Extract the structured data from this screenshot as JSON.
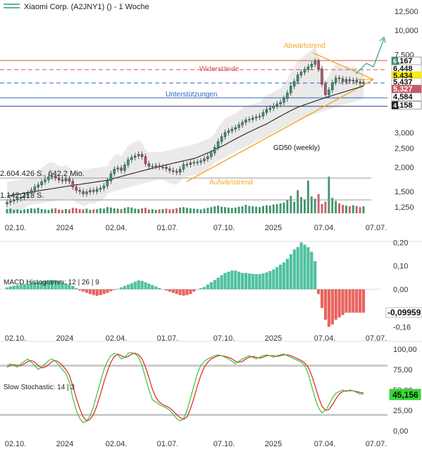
{
  "header": {
    "title": "Xiaomi Corp. (A2JNY1) () - 1 Woche"
  },
  "colors": {
    "up": "#2e9e6e",
    "down": "#c0505a",
    "gd50": "#222222",
    "trend": "#f5a623",
    "resistance": "#d9534f",
    "support": "#2a66b8",
    "arrow": "#3aa58f",
    "band": "#e6e6e6",
    "macd_pos": "#4fc1a1",
    "macd_neg": "#e8645f",
    "stoch_k": "#39c639",
    "stoch_d": "#e02020",
    "stoch_bound": "#cccccc",
    "price_badge_yellow": "#ffee00",
    "stoch_badge_green": "#33dd33"
  },
  "price_panel": {
    "y_ticks": [
      "12,500",
      "10,000",
      "7,500",
      "5,000",
      "3,000",
      "2,500",
      "2,000",
      "1,500",
      "1,250"
    ],
    "badges": [
      {
        "value": "7,167",
        "style": "white-dark"
      },
      {
        "value": "6,448",
        "style": "white"
      },
      {
        "value": "5,434",
        "style": "yellow"
      },
      {
        "value": "5,437",
        "style": "white"
      },
      {
        "value": "5,327",
        "style": "red"
      },
      {
        "value": "4,584",
        "style": "white"
      },
      {
        "value": "4,158",
        "style": "white-dark"
      }
    ],
    "badge_letters": {
      "b6": "6",
      "b4": "4"
    },
    "labels": {
      "abwaertstrend": "Abwärtstrend",
      "aufwaertstrend": "Aufwärtstrend",
      "widerstaende": "Widerstände",
      "unterstuetzungen": "Unterstützungen",
      "gd50": "GD50 (weekly)",
      "vol_left_1": "2.604.426 S., 642,2 Mio.",
      "vol_left_2": "1.142.213 S."
    },
    "x_labels": [
      "02.10.",
      "2024",
      "02.04.",
      "01.07.",
      "07.10.",
      "2025",
      "07.04.",
      "07.07."
    ]
  },
  "macd_panel": {
    "title": "MACD Histogramm: 12 | 26 | 9",
    "y_ticks": [
      "0,20",
      "0,10",
      "0,00",
      "-0,16"
    ],
    "badge": "-0,09959",
    "x_labels": [
      "02.10.",
      "2024",
      "02.04.",
      "01.07.",
      "07.10.",
      "2025",
      "07.04.",
      "07.07."
    ]
  },
  "stoch_panel": {
    "title": "Slow Stochastic: 14 | 3",
    "y_ticks": [
      "100,00",
      "75,00",
      "50,00",
      "25,00",
      "0,00"
    ],
    "badge": "45,156",
    "x_labels": [
      "02.10.",
      "2024",
      "02.04.",
      "01.07.",
      "07.10.",
      "2025",
      "07.04.",
      "07.07."
    ]
  },
  "chart_data": [
    {
      "type": "candlestick",
      "title": "Xiaomi Corp. (A2JNY1) () - 1 Woche",
      "scale": "log",
      "ylim": [
        1.1,
        13.5
      ],
      "x_axis_labels": [
        "02.10.",
        "2024",
        "02.04.",
        "01.07.",
        "07.10.",
        "2025",
        "07.04.",
        "07.07."
      ],
      "y_tick_labels": [
        "12,500",
        "10,000",
        "7,500",
        "5,000",
        "3,000",
        "2,500",
        "2,000",
        "1,500",
        "1,250"
      ],
      "close": [
        1.32,
        1.34,
        1.36,
        1.38,
        1.4,
        1.43,
        1.47,
        1.52,
        1.58,
        1.62,
        1.68,
        1.72,
        1.78,
        1.8,
        1.76,
        1.72,
        1.7,
        1.74,
        1.69,
        1.58,
        1.52,
        1.5,
        1.46,
        1.49,
        1.52,
        1.5,
        1.54,
        1.56,
        1.6,
        1.7,
        1.85,
        1.95,
        1.98,
        1.92,
        2.05,
        2.18,
        2.24,
        2.28,
        2.32,
        2.26,
        2.08,
        2.02,
        2.02,
        2.03,
        2.0,
        2.0,
        1.96,
        1.92,
        1.9,
        1.88,
        1.95,
        2.06,
        2.06,
        2.1,
        2.11,
        2.12,
        2.15,
        2.2,
        2.26,
        2.36,
        2.52,
        2.7,
        2.86,
        3.0,
        3.06,
        3.12,
        3.18,
        3.28,
        3.38,
        3.48,
        3.5,
        3.56,
        3.6,
        3.64,
        3.8,
        3.94,
        4.0,
        4.1,
        4.2,
        4.28,
        4.48,
        4.78,
        5.18,
        5.48,
        5.9,
        6.1,
        6.3,
        6.5,
        6.7,
        6.95,
        6.35,
        5.3,
        4.68,
        4.95,
        5.4,
        5.7,
        5.65,
        5.45,
        5.6,
        5.5,
        5.55,
        5.45,
        5.35,
        5.43
      ],
      "series": [
        {
          "name": "GD50 (weekly)",
          "values": [
            1.42,
            1.43,
            1.44,
            1.45,
            1.46,
            1.47,
            1.48,
            1.49,
            1.5,
            1.51,
            1.52,
            1.53,
            1.54,
            1.55,
            1.56,
            1.57,
            1.58,
            1.59,
            1.6,
            1.61,
            1.62,
            1.63,
            1.64,
            1.65,
            1.66,
            1.67,
            1.68,
            1.69,
            1.7,
            1.71,
            1.73,
            1.75,
            1.77,
            1.79,
            1.81,
            1.83,
            1.85,
            1.87,
            1.89,
            1.91,
            1.93,
            1.95,
            1.97,
            1.99,
            2.01,
            2.03,
            2.05,
            2.07,
            2.09,
            2.11,
            2.13,
            2.15,
            2.17,
            2.19,
            2.21,
            2.24,
            2.28,
            2.32,
            2.36,
            2.4,
            2.45,
            2.5,
            2.55,
            2.6,
            2.66,
            2.72,
            2.78,
            2.84,
            2.9,
            2.96,
            3.02,
            3.08,
            3.14,
            3.2,
            3.26,
            3.32,
            3.4,
            3.48,
            3.56,
            3.64,
            3.72,
            3.8,
            3.88,
            3.96,
            4.04,
            4.1,
            4.16,
            4.22,
            4.28,
            4.34,
            4.4,
            4.46,
            4.52,
            4.58,
            4.64,
            4.7,
            4.76,
            4.82,
            4.88,
            4.94,
            5.0,
            5.06,
            5.12,
            5.18
          ]
        },
        {
          "name": "Widerstände",
          "values": [
            7.167,
            6.448
          ]
        },
        {
          "name": "Unterstützungen",
          "values": [
            4.584,
            4.158
          ]
        }
      ],
      "annotations": [
        "Abwärtstrend",
        "Aufwärtstrend",
        "Widerstände",
        "Unterstützungen",
        "GD50 (weekly)",
        "2.604.426 S., 642,2 Mio.",
        "1.142.213 S."
      ],
      "price_badges": [
        "7,167",
        "6,448",
        "5,434",
        "5,437",
        "5,327",
        "4,584",
        "4,158"
      ],
      "volume": [
        1.1,
        1.2,
        0.9,
        1.0,
        0.8,
        1.0,
        1.1,
        1.3,
        1.2,
        1.4,
        1.1,
        1.0,
        0.9,
        1.2,
        1.3,
        1.0,
        0.9,
        1.1,
        1.0,
        1.4,
        1.3,
        1.1,
        1.0,
        1.2,
        0.9,
        1.0,
        1.1,
        1.3,
        1.2,
        1.6,
        1.5,
        1.3,
        1.2,
        1.1,
        1.4,
        1.6,
        1.5,
        1.2,
        1.1,
        1.3,
        1.4,
        1.0,
        1.1,
        0.9,
        1.0,
        1.1,
        1.2,
        1.0,
        1.1,
        1.3,
        1.5,
        1.6,
        1.4,
        1.3,
        1.2,
        1.1,
        1.0,
        1.2,
        1.4,
        1.6,
        1.8,
        2.0,
        1.7,
        1.6,
        1.5,
        1.4,
        1.5,
        1.7,
        1.8,
        2.2,
        1.9,
        1.8,
        1.7,
        1.6,
        1.9,
        2.1,
        2.0,
        2.3,
        2.4,
        2.6,
        2.8,
        3.5,
        4.5,
        3.0,
        6.0,
        4.2,
        3.6,
        8.5,
        4.4,
        3.8,
        5.0,
        2.4,
        3.0,
        9.5,
        4.0,
        3.2,
        2.6,
        2.2,
        2.0,
        1.8,
        2.1,
        1.9,
        1.6,
        1.8
      ]
    },
    {
      "type": "bar",
      "title": "MACD Histogramm: 12 | 26 | 9",
      "ylim": [
        -0.17,
        0.21
      ],
      "y_tick_labels": [
        "0,20",
        "0,10",
        "0,00",
        "-0,16"
      ],
      "last_value": "-0,09959",
      "values": [
        0.008,
        0.012,
        0.015,
        0.018,
        0.02,
        0.022,
        0.025,
        0.028,
        0.03,
        0.032,
        0.034,
        0.036,
        0.038,
        0.04,
        0.038,
        0.035,
        0.03,
        0.025,
        0.02,
        0.015,
        0.005,
        -0.005,
        -0.01,
        -0.015,
        -0.02,
        -0.025,
        -0.028,
        -0.025,
        -0.02,
        -0.015,
        -0.008,
        -0.003,
        0.002,
        0.008,
        0.014,
        0.02,
        0.026,
        0.032,
        0.038,
        0.036,
        0.03,
        0.024,
        0.018,
        0.012,
        0.006,
        0.0,
        -0.005,
        -0.01,
        -0.015,
        -0.02,
        -0.025,
        -0.027,
        -0.025,
        -0.02,
        -0.01,
        0.0,
        0.005,
        0.01,
        0.02,
        0.03,
        0.04,
        0.05,
        0.06,
        0.07,
        0.075,
        0.08,
        0.08,
        0.075,
        0.07,
        0.07,
        0.068,
        0.066,
        0.065,
        0.065,
        0.068,
        0.072,
        0.078,
        0.085,
        0.095,
        0.105,
        0.115,
        0.13,
        0.15,
        0.17,
        0.18,
        0.2,
        0.19,
        0.18,
        0.16,
        0.12,
        -0.02,
        -0.08,
        -0.13,
        -0.16,
        -0.15,
        -0.13,
        -0.12,
        -0.11,
        -0.1,
        -0.1,
        -0.1,
        -0.1,
        -0.1,
        -0.1
      ]
    },
    {
      "type": "line",
      "title": "Slow Stochastic: 14 | 3",
      "ylim": [
        0,
        100
      ],
      "y_tick_labels": [
        "100,00",
        "75,00",
        "50,00",
        "25,00",
        "0,00"
      ],
      "last_value": "45,156",
      "series": [
        {
          "name": "%K",
          "values": [
            80,
            82,
            80,
            78,
            82,
            85,
            88,
            84,
            80,
            75,
            78,
            82,
            86,
            88,
            85,
            80,
            75,
            70,
            60,
            40,
            25,
            15,
            10,
            12,
            18,
            30,
            45,
            60,
            75,
            85,
            92,
            95,
            93,
            88,
            90,
            95,
            96,
            94,
            90,
            80,
            65,
            50,
            38,
            35,
            32,
            30,
            28,
            25,
            20,
            15,
            12,
            15,
            25,
            40,
            55,
            70,
            80,
            85,
            88,
            90,
            92,
            93,
            92,
            90,
            88,
            85,
            82,
            85,
            88,
            90,
            92,
            90,
            88,
            90,
            92,
            93,
            92,
            90,
            92,
            93,
            94,
            92,
            90,
            88,
            86,
            84,
            80,
            70,
            55,
            40,
            28,
            22,
            25,
            32,
            40,
            46,
            48,
            50,
            48,
            50,
            49,
            47,
            45,
            45
          ]
        },
        {
          "name": "%D",
          "values": [
            78,
            80,
            81,
            80,
            80,
            82,
            85,
            86,
            84,
            80,
            77,
            78,
            81,
            85,
            86,
            84,
            80,
            75,
            68,
            55,
            40,
            27,
            17,
            12,
            14,
            20,
            31,
            45,
            60,
            73,
            84,
            91,
            94,
            92,
            90,
            91,
            94,
            95,
            93,
            88,
            78,
            65,
            51,
            41,
            35,
            32,
            30,
            28,
            24,
            20,
            16,
            14,
            17,
            27,
            40,
            55,
            68,
            78,
            84,
            88,
            90,
            92,
            92,
            91,
            90,
            88,
            85,
            84,
            85,
            88,
            90,
            91,
            90,
            89,
            90,
            92,
            92,
            92,
            91,
            92,
            93,
            93,
            92,
            90,
            88,
            86,
            83,
            78,
            68,
            55,
            41,
            30,
            25,
            26,
            32,
            39,
            45,
            48,
            49,
            49,
            49,
            48,
            47,
            46
          ]
        }
      ]
    }
  ]
}
